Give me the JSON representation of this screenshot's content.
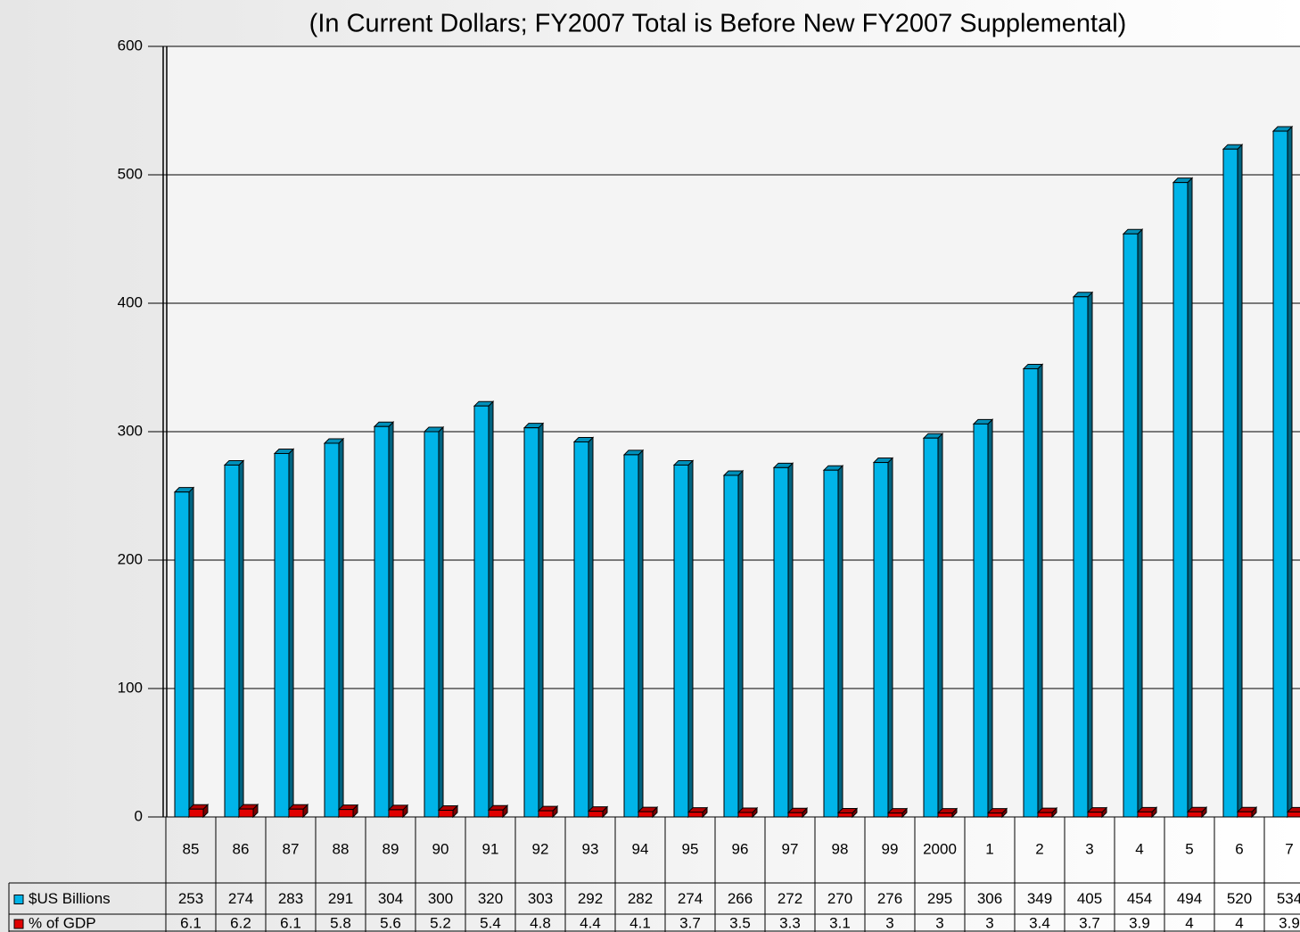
{
  "chart_data": {
    "type": "bar",
    "title": "(In Current Dollars; FY2007 Total is Before New FY2007 Supplemental)",
    "categories": [
      "85",
      "86",
      "87",
      "88",
      "89",
      "90",
      "91",
      "92",
      "93",
      "94",
      "95",
      "96",
      "97",
      "98",
      "99",
      "2000",
      "1",
      "2",
      "3",
      "4",
      "5",
      "6",
      "7"
    ],
    "series": [
      {
        "name": "$US Billions",
        "color": "#00b4e8",
        "values": [
          253,
          274,
          283,
          291,
          304,
          300,
          320,
          303,
          292,
          282,
          274,
          266,
          272,
          270,
          276,
          295,
          306,
          349,
          405,
          454,
          494,
          520,
          534
        ]
      },
      {
        "name": "% of GDP",
        "color": "#e00000",
        "values": [
          6.1,
          6.2,
          6.1,
          5.8,
          5.6,
          5.2,
          5.4,
          4.8,
          4.4,
          4.1,
          3.7,
          3.5,
          3.3,
          3.1,
          3,
          3,
          3,
          3.4,
          3.7,
          3.9,
          4,
          4,
          3.9
        ]
      }
    ],
    "ylim": [
      0,
      600
    ],
    "yticks": [
      0,
      100,
      200,
      300,
      400,
      500,
      600
    ],
    "grid": true
  }
}
